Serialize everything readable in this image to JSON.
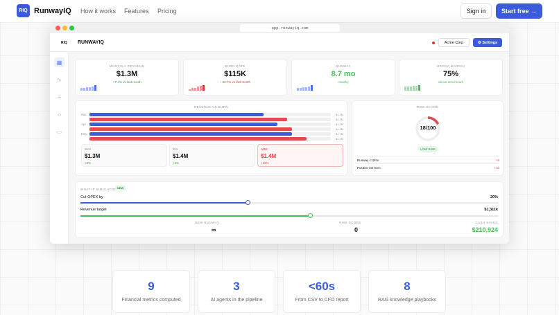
{
  "nav": {
    "logo": "RIQ",
    "brand": "RunwayIQ",
    "links": [
      "How it works",
      "Features",
      "Pricing"
    ],
    "signin": "Sign in",
    "start": "Start free →"
  },
  "window": {
    "url": "app.runwayiq.com"
  },
  "app": {
    "logo": "RIQ",
    "title": "RUNWAYIQ",
    "company": "Acme Corp",
    "settings": "⚙ Settings",
    "status_color": "#e03131"
  },
  "kpis": [
    {
      "label": "Monthly Revenue",
      "value": "$1.3M",
      "sub": "↑ 7.4% vs last month",
      "color": "#111",
      "subcolor": "#2f9e44",
      "spark": "#4c6ef5",
      "levels": [
        0.5,
        0.55,
        0.6,
        0.65,
        0.75,
        1
      ]
    },
    {
      "label": "Burn Rate",
      "value": "$115K",
      "sub": "↑ 32.7% vs last month",
      "color": "#111",
      "subcolor": "#e03131",
      "spark": "#e03131",
      "levels": [
        0.3,
        0.45,
        0.55,
        0.7,
        0.85,
        1
      ]
    },
    {
      "label": "Runway",
      "value": "8.7 mo",
      "sub": "Healthy",
      "color": "#40c057",
      "subcolor": "#40c057",
      "spark": "#4c6ef5",
      "levels": [
        0.5,
        0.55,
        0.6,
        0.65,
        0.75,
        1
      ]
    },
    {
      "label": "Gross Margin",
      "value": "75%",
      "sub": "above benchmark",
      "color": "#111",
      "subcolor": "#40c057",
      "spark": "#40c057",
      "levels": [
        0.75,
        0.8,
        0.8,
        0.85,
        0.9,
        1
      ]
    }
  ],
  "chart": {
    "title": "Revenue vs Burn",
    "months": [
      {
        "m": "Mar",
        "rev": 0.72,
        "burn": 0.82,
        "revl": "$1.1M",
        "burnl": "$1.3M"
      },
      {
        "m": "Apr",
        "rev": 0.78,
        "burn": 0.84,
        "revl": "$1.2M",
        "burnl": "$1.3M"
      },
      {
        "m": "May",
        "rev": 0.84,
        "burn": 0.9,
        "revl": "$1.3M",
        "burnl": "$1.4M"
      }
    ],
    "forecast": [
      {
        "m": "JUN",
        "v": "$1.3M",
        "d": "+2%"
      },
      {
        "m": "JUL",
        "v": "$1.4M",
        "d": "+6%"
      },
      {
        "m": "AUG",
        "v": "$1.4M",
        "d": "+10%"
      }
    ],
    "rev_color": "#3b5bdb",
    "burn_color": "#e5484d"
  },
  "risk": {
    "title": "Risk Score",
    "score": "18/100",
    "value": 18,
    "badge": "LOW RISK",
    "items": [
      {
        "l": "Runway <12mo",
        "v": "+8"
      },
      {
        "l": "Positive net burn",
        "v": "+10"
      }
    ]
  },
  "sim": {
    "title": "What-if Simulator",
    "badge": "NEW",
    "opex_label": "Cut OPEX by",
    "opex_value": "20%",
    "opex_fill": 0.4,
    "rev_label": "Revenue target",
    "rev_value": "$1,311k",
    "rev_fill": 0.55,
    "out": [
      {
        "l": "New Runway",
        "v": "∞"
      },
      {
        "l": "Risk Score",
        "v": "0"
      },
      {
        "l": "Cash Saved",
        "v": "$210,924"
      }
    ]
  },
  "stats": [
    {
      "n": "9",
      "t": "Financial metrics computed"
    },
    {
      "n": "3",
      "t": "AI agents in the pipeline"
    },
    {
      "n": "<60s",
      "t": "From CSV to CFO report"
    },
    {
      "n": "8",
      "t": "RAG knowledge playbooks"
    }
  ]
}
